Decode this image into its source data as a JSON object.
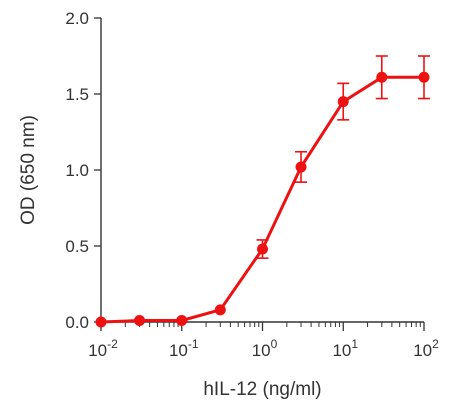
{
  "chart_data": {
    "type": "line",
    "title": "",
    "xlabel": "hIL-12 (ng/ml)",
    "ylabel": "OD (650 nm)",
    "xscale": "log",
    "xlim": [
      0.01,
      100
    ],
    "ylim": [
      0,
      2.0
    ],
    "x_tick_labels": [
      {
        "base": "10",
        "exp": "-2"
      },
      {
        "base": "10",
        "exp": "-1"
      },
      {
        "base": "10",
        "exp": "0"
      },
      {
        "base": "10",
        "exp": "1"
      },
      {
        "base": "10",
        "exp": "2"
      }
    ],
    "y_ticks": [
      0.0,
      0.5,
      1.0,
      1.5,
      2.0
    ],
    "y_tick_labels": [
      "0.0",
      "0.5",
      "1.0",
      "1.5",
      "2.0"
    ],
    "grid": false,
    "legend": "none",
    "color": "#ee1111",
    "series": [
      {
        "x": [
          0.01,
          0.03,
          0.1,
          0.3,
          1,
          3,
          10,
          30,
          100
        ],
        "y": [
          0.0,
          0.01,
          0.01,
          0.08,
          0.48,
          1.02,
          1.45,
          1.61,
          1.61
        ],
        "error": [
          0,
          0,
          0,
          0,
          0.06,
          0.1,
          0.12,
          0.14,
          0.14
        ]
      }
    ]
  }
}
